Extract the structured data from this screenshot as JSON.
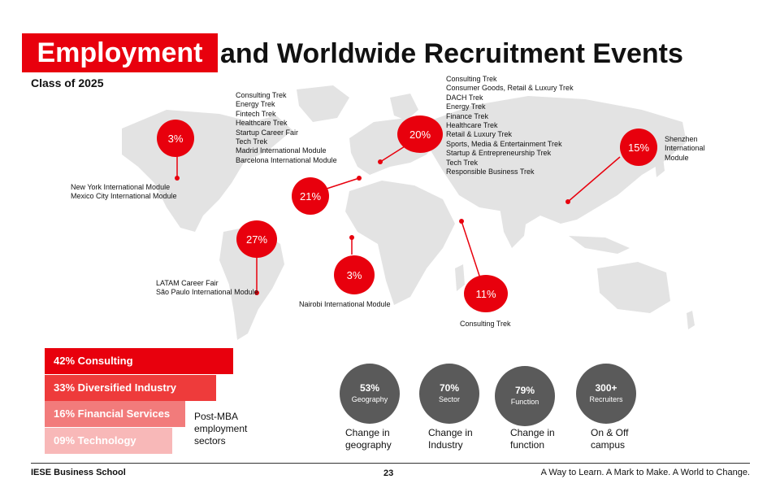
{
  "header": {
    "title_highlight": "Employment",
    "title_rest": "and Worldwide Recruitment Events",
    "subtitle": "Class of 2025"
  },
  "regions": [
    {
      "name": "north-america",
      "percent": "3%",
      "events": [
        "New York International Module",
        "Mexico City International Module"
      ]
    },
    {
      "name": "europe-west",
      "percent": "21%",
      "events": [
        "Consulting Trek",
        "Energy Trek",
        "Fintech Trek",
        "Healthcare Trek",
        "Startup Career Fair",
        "Tech Trek",
        "Madrid International Module",
        "Barcelona International Module"
      ]
    },
    {
      "name": "europe-east",
      "percent": "20%",
      "events": [
        "Consulting Trek",
        "Consumer Goods, Retail & Luxury Trek",
        "DACH Trek",
        "Energy Trek",
        "Finance Trek",
        "Healthcare Trek",
        "Retail & Luxury Trek",
        "Sports, Media & Entertainment Trek",
        "Startup & Entrepreneurship Trek",
        "Tech Trek",
        "Responsible Business Trek"
      ]
    },
    {
      "name": "latam",
      "percent": "27%",
      "events": [
        "LATAM Career Fair",
        "São Paulo International Module"
      ]
    },
    {
      "name": "africa",
      "percent": "3%",
      "events": [
        "Nairobi International Module"
      ]
    },
    {
      "name": "middle-east",
      "percent": "11%",
      "events": [
        "Consulting Trek"
      ]
    },
    {
      "name": "asia",
      "percent": "15%",
      "events": [
        "Shenzhen",
        "International",
        "Module"
      ]
    }
  ],
  "sectors": {
    "items": [
      {
        "label": "42% Consulting",
        "value": 42,
        "color": "#e8000d"
      },
      {
        "label": "33% Diversified Industry",
        "value": 33,
        "color": "#ee3b3b"
      },
      {
        "label": "16% Financial Services",
        "value": 16,
        "color": "#f27b7b"
      },
      {
        "label": "09% Technology",
        "value": 9,
        "color": "#f8b8b8"
      }
    ],
    "note": [
      "Post-MBA",
      "employment",
      "sectors"
    ]
  },
  "stats": [
    {
      "value": "53%",
      "category": "Geography",
      "caption": [
        "Change in",
        "geography"
      ]
    },
    {
      "value": "70%",
      "category": "Sector",
      "caption": [
        "Change in",
        "Industry"
      ]
    },
    {
      "value": "79%",
      "category": "Function",
      "caption": [
        "Change in",
        "function"
      ]
    },
    {
      "value": "300+",
      "category": "Recruiters",
      "caption": [
        "On & Off",
        "campus"
      ]
    }
  ],
  "footer": {
    "left": "IESE Business School",
    "page": "23",
    "right": "A Way to Learn. A Mark to Make. A World to Change."
  },
  "colors": {
    "accent": "#e8000d",
    "stat_circle": "#5a5a5a",
    "map": "#e3e3e3"
  }
}
